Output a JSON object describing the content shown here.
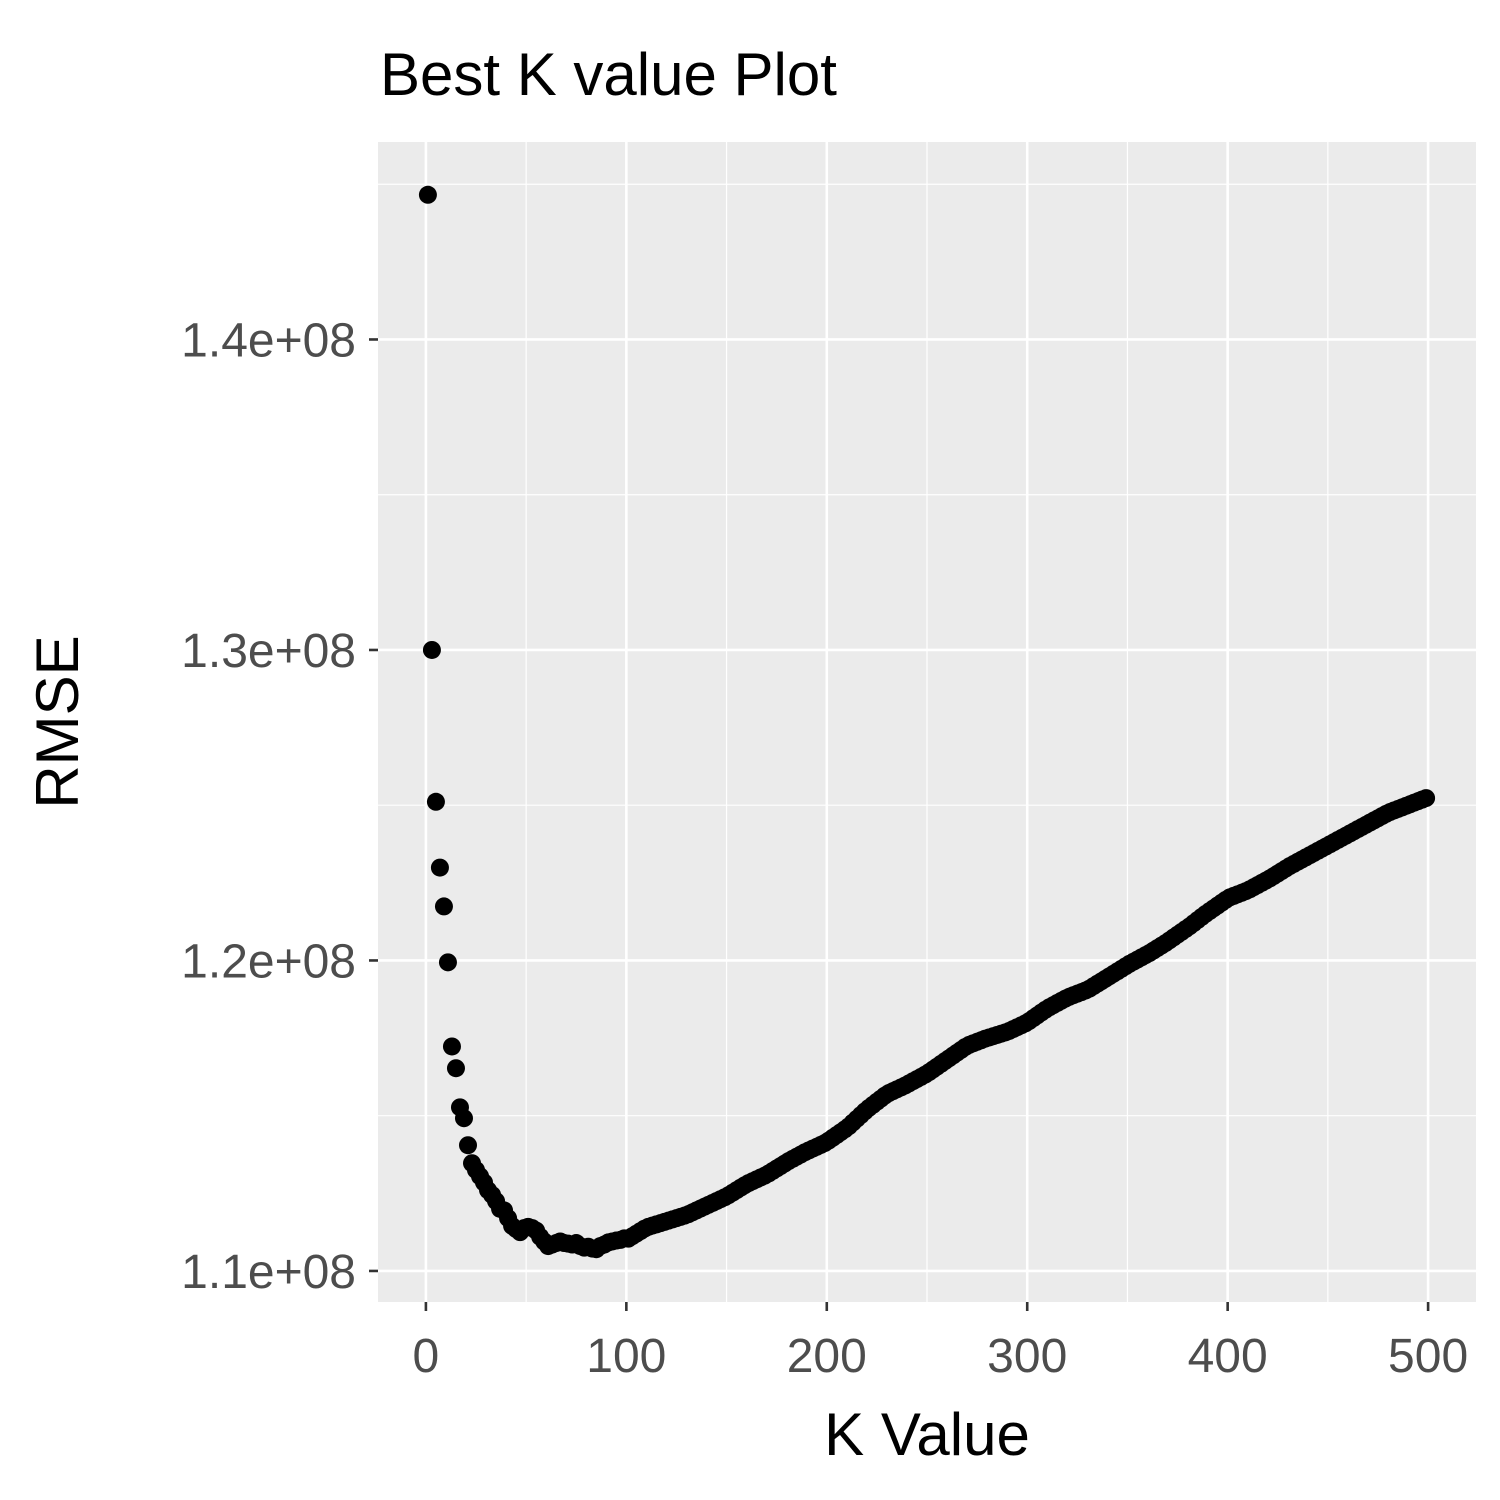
{
  "chart_data": {
    "type": "scatter",
    "title": "Best K value Plot",
    "x_label": "K Value",
    "y_label": "RMSE",
    "color": "#000000",
    "grid": true,
    "xlim": [
      -23.9,
      523.9
    ],
    "xticks": [
      0,
      100,
      200,
      300,
      400,
      500
    ],
    "ylim": [
      109000000.0,
      146360000.0
    ],
    "yticks": [
      {
        "value": 110000000.0,
        "label": "1.1e+08"
      },
      {
        "value": 120000000.0,
        "label": "1.2e+08"
      },
      {
        "value": 130000000.0,
        "label": "1.3e+08"
      },
      {
        "value": 140000000.0,
        "label": "1.4e+08"
      }
    ],
    "x": [
      1,
      3,
      5,
      7,
      9,
      11,
      13,
      15,
      17,
      19,
      21,
      23,
      25,
      27,
      29,
      31,
      33,
      35,
      37,
      39,
      41,
      43,
      45,
      47,
      49,
      51,
      53,
      55,
      57,
      59,
      61,
      63,
      65,
      67,
      69,
      71,
      73,
      75,
      77,
      79,
      81,
      83,
      85,
      87,
      89,
      91,
      93,
      95,
      97,
      99,
      101,
      103,
      105,
      107,
      109,
      111,
      113,
      115,
      117,
      119,
      121,
      123,
      125,
      127,
      129,
      131,
      133,
      135,
      137,
      139,
      141,
      143,
      145,
      147,
      149,
      151,
      153,
      155,
      157,
      159,
      161,
      163,
      165,
      167,
      169,
      171,
      173,
      175,
      177,
      179,
      181,
      183,
      185,
      187,
      189,
      191,
      193,
      195,
      197,
      199,
      201,
      203,
      205,
      207,
      209,
      211,
      213,
      215,
      217,
      219,
      221,
      223,
      225,
      227,
      229,
      231,
      233,
      235,
      237,
      239,
      241,
      243,
      245,
      247,
      249,
      251,
      253,
      255,
      257,
      259,
      261,
      263,
      265,
      267,
      269,
      271,
      273,
      275,
      277,
      279,
      281,
      283,
      285,
      287,
      289,
      291,
      293,
      295,
      297,
      299,
      301,
      303,
      305,
      307,
      309,
      311,
      313,
      315,
      317,
      319,
      321,
      323,
      325,
      327,
      329,
      331,
      333,
      335,
      337,
      339,
      341,
      343,
      345,
      347,
      349,
      351,
      353,
      355,
      357,
      359,
      361,
      363,
      365,
      367,
      369,
      371,
      373,
      375,
      377,
      379,
      381,
      383,
      385,
      387,
      389,
      391,
      393,
      395,
      397,
      399,
      401,
      403,
      405,
      407,
      409,
      411,
      413,
      415,
      417,
      419,
      421,
      423,
      425,
      427,
      429,
      431,
      433,
      435,
      437,
      439,
      441,
      443,
      445,
      447,
      449,
      451,
      453,
      455,
      457,
      459,
      461,
      463,
      465,
      467,
      469,
      471,
      473,
      475,
      477,
      479,
      481,
      483,
      485,
      487,
      489,
      491,
      493,
      495,
      497,
      499
    ],
    "values": [
      144660000.0,
      130000000.0,
      125110000.0,
      122990000.0,
      121740000.0,
      119940000.0,
      117230000.0,
      116530000.0,
      115270000.0,
      114920000.0,
      114050000.0,
      113470000.0,
      113250000.0,
      113050000.0,
      112850000.0,
      112600000.0,
      112450000.0,
      112250000.0,
      112000000.0,
      111950000.0,
      111700000.0,
      111450000.0,
      111350000.0,
      111250000.0,
      111380000.0,
      111420000.0,
      111380000.0,
      111300000.0,
      111100000.0,
      110950000.0,
      110800000.0,
      110850000.0,
      110900000.0,
      110950000.0,
      110900000.0,
      110880000.0,
      110850000.0,
      110900000.0,
      110800000.0,
      110750000.0,
      110780000.0,
      110720000.0,
      110700000.0,
      110800000.0,
      110850000.0,
      110920000.0,
      110950000.0,
      110980000.0,
      111000000.0,
      111050000.0,
      111040000.0,
      111120000.0,
      111200000.0,
      111280000.0,
      111360000.0,
      111420000.0,
      111460000.0,
      111500000.0,
      111540000.0,
      111580000.0,
      111620000.0,
      111660000.0,
      111700000.0,
      111740000.0,
      111780000.0,
      111830000.0,
      111890000.0,
      111950000.0,
      112010000.0,
      112070000.0,
      112130000.0,
      112190000.0,
      112250000.0,
      112310000.0,
      112370000.0,
      112440000.0,
      112520000.0,
      112600000.0,
      112680000.0,
      112760000.0,
      112830000.0,
      112890000.0,
      112950000.0,
      113010000.0,
      113070000.0,
      113140000.0,
      113220000.0,
      113300000.0,
      113380000.0,
      113460000.0,
      113540000.0,
      113610000.0,
      113680000.0,
      113750000.0,
      113820000.0,
      113880000.0,
      113940000.0,
      114000000.0,
      114060000.0,
      114120000.0,
      114200000.0,
      114290000.0,
      114380000.0,
      114470000.0,
      114560000.0,
      114660000.0,
      114780000.0,
      114900000.0,
      115020000.0,
      115140000.0,
      115250000.0,
      115350000.0,
      115450000.0,
      115550000.0,
      115650000.0,
      115730000.0,
      115790000.0,
      115850000.0,
      115910000.0,
      115970000.0,
      116040000.0,
      116110000.0,
      116180000.0,
      116250000.0,
      116320000.0,
      116400000.0,
      116490000.0,
      116580000.0,
      116670000.0,
      116760000.0,
      116850000.0,
      116940000.0,
      117030000.0,
      117120000.0,
      117210000.0,
      117280000.0,
      117330000.0,
      117380000.0,
      117430000.0,
      117480000.0,
      117520000.0,
      117560000.0,
      117600000.0,
      117640000.0,
      117680000.0,
      117730000.0,
      117790000.0,
      117850000.0,
      117910000.0,
      117970000.0,
      118050000.0,
      118140000.0,
      118230000.0,
      118320000.0,
      118410000.0,
      118490000.0,
      118560000.0,
      118630000.0,
      118700000.0,
      118770000.0,
      118830000.0,
      118880000.0,
      118930000.0,
      118980000.0,
      119030000.0,
      119090000.0,
      119170000.0,
      119250000.0,
      119330000.0,
      119410000.0,
      119490000.0,
      119570000.0,
      119650000.0,
      119730000.0,
      119810000.0,
      119890000.0,
      119960000.0,
      120030000.0,
      120100000.0,
      120170000.0,
      120240000.0,
      120320000.0,
      120400000.0,
      120480000.0,
      120560000.0,
      120650000.0,
      120740000.0,
      120830000.0,
      120920000.0,
      121010000.0,
      121100000.0,
      121200000.0,
      121300000.0,
      121400000.0,
      121500000.0,
      121590000.0,
      121680000.0,
      121770000.0,
      121860000.0,
      121950000.0,
      122030000.0,
      122080000.0,
      122130000.0,
      122180000.0,
      122230000.0,
      122290000.0,
      122360000.0,
      122430000.0,
      122500000.0,
      122570000.0,
      122640000.0,
      122720000.0,
      122800000.0,
      122880000.0,
      122960000.0,
      123040000.0,
      123110000.0,
      123180000.0,
      123250000.0,
      123320000.0,
      123390000.0,
      123460000.0,
      123530000.0,
      123600000.0,
      123670000.0,
      123740000.0,
      123810000.0,
      123880000.0,
      123950000.0,
      124020000.0,
      124090000.0,
      124160000.0,
      124230000.0,
      124300000.0,
      124370000.0,
      124440000.0,
      124510000.0,
      124580000.0,
      124650000.0,
      124720000.0,
      124780000.0,
      124830000.0,
      124880000.0,
      124930000.0,
      124980000.0,
      125030000.0,
      125080000.0,
      125130000.0,
      125180000.0,
      125230000.0
    ]
  }
}
